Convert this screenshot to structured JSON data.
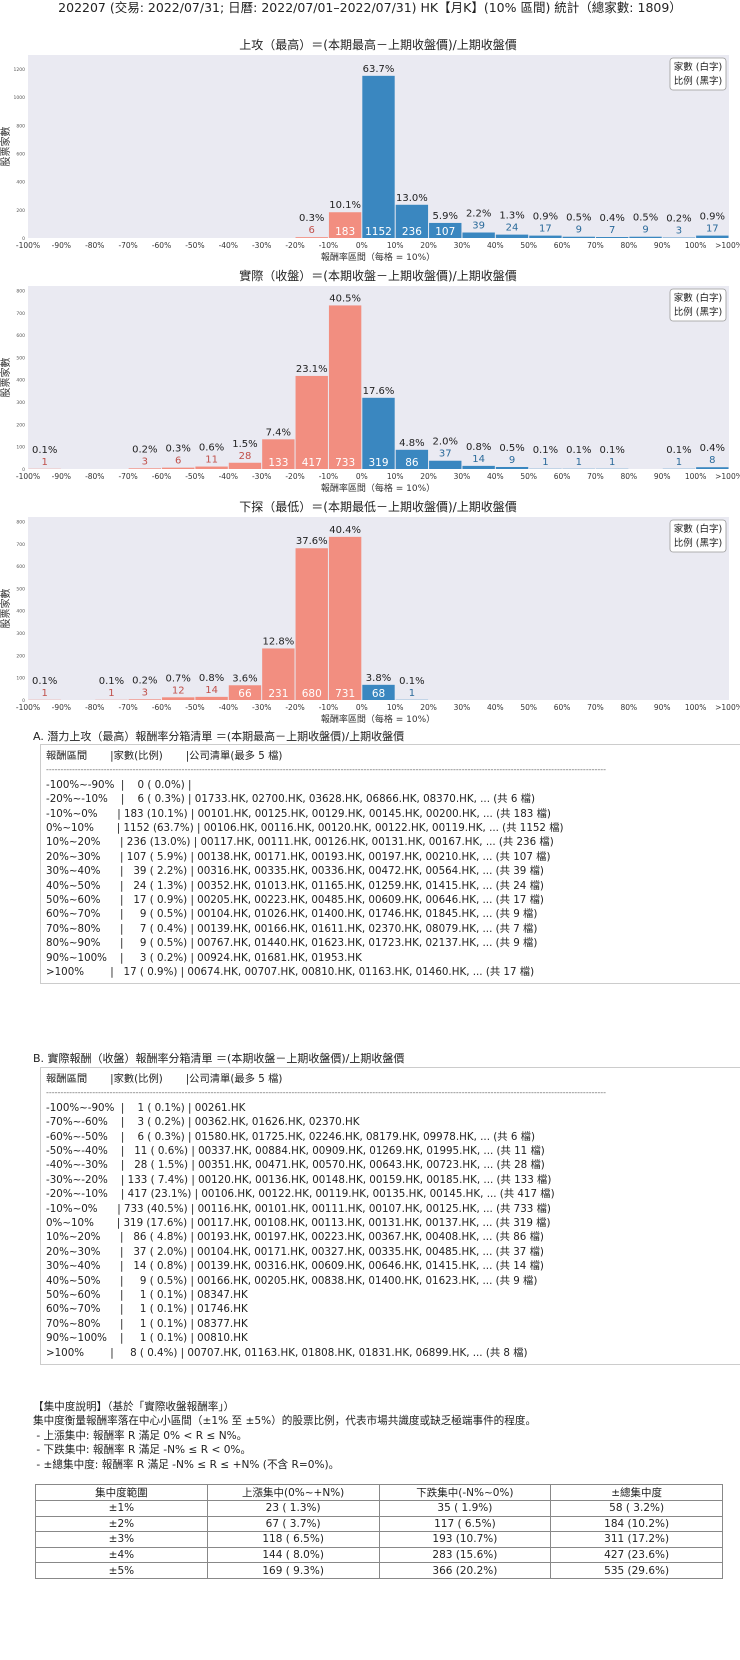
{
  "title": "202207 (交易: 2022/07/31; 日曆: 2022/07/01–2022/07/31) HK【月K】(10% 區間) 統計（總家數: 1809）",
  "colors": {
    "negative": "#f28e80",
    "positive": "#3a87c0",
    "plot_bg": "#eaeaf2"
  },
  "chart_data": [
    {
      "type": "bar",
      "title": "上攻（最高）＝(本期最高－上期收盤價)/上期收盤價",
      "xlabel": "報酬率區間（每格 = 10%）",
      "ylabel": "股票家數",
      "legend": [
        "家數 (白字)",
        "比例 (黑字)"
      ],
      "legend_position": "top-right",
      "ylim": [
        0,
        1300
      ],
      "yticks": [
        0,
        200,
        400,
        600,
        800,
        1000,
        1200
      ],
      "x_tick_labels": [
        "-100%",
        "-90%",
        "-80%",
        "-70%",
        "-60%",
        "-50%",
        "-40%",
        "-30%",
        "-20%",
        "-10%",
        "0%",
        "10%",
        "20%",
        "30%",
        "40%",
        "50%",
        "60%",
        "70%",
        "80%",
        "90%",
        "100%",
        ">100%"
      ],
      "values": [
        0,
        0,
        0,
        0,
        0,
        0,
        0,
        0,
        6,
        183,
        1152,
        236,
        107,
        39,
        24,
        17,
        9,
        7,
        9,
        3,
        17
      ],
      "pct": [
        "",
        "",
        "",
        "",
        "",
        "",
        "",
        "",
        "0.3%",
        "10.1%",
        "63.7%",
        "13.0%",
        "5.9%",
        "2.2%",
        "1.3%",
        "0.9%",
        "0.5%",
        "0.4%",
        "0.5%",
        "0.2%",
        "0.9%"
      ]
    },
    {
      "type": "bar",
      "title": "實際（收盤）＝(本期收盤－上期收盤價)/上期收盤價",
      "xlabel": "報酬率區間（每格 = 10%）",
      "ylabel": "股票家數",
      "legend": [
        "家數 (白字)",
        "比例 (黑字)"
      ],
      "legend_position": "top-right",
      "ylim": [
        0,
        820
      ],
      "yticks": [
        0,
        100,
        200,
        300,
        400,
        500,
        600,
        700,
        800
      ],
      "x_tick_labels": [
        "-100%",
        "-90%",
        "-80%",
        "-70%",
        "-60%",
        "-50%",
        "-40%",
        "-30%",
        "-20%",
        "-10%",
        "0%",
        "10%",
        "20%",
        "30%",
        "40%",
        "50%",
        "60%",
        "70%",
        "80%",
        "90%",
        "100%",
        ">100%"
      ],
      "values": [
        1,
        0,
        0,
        3,
        6,
        11,
        28,
        133,
        417,
        733,
        319,
        86,
        37,
        14,
        9,
        1,
        1,
        1,
        0,
        1,
        8
      ],
      "pct": [
        "0.1%",
        "",
        "",
        "0.2%",
        "0.3%",
        "0.6%",
        "1.5%",
        "7.4%",
        "23.1%",
        "40.5%",
        "17.6%",
        "4.8%",
        "2.0%",
        "0.8%",
        "0.5%",
        "0.1%",
        "0.1%",
        "0.1%",
        "",
        "0.1%",
        "0.4%"
      ]
    },
    {
      "type": "bar",
      "title": "下探（最低）＝(本期最低－上期收盤價)/上期收盤價",
      "xlabel": "報酬率區間（每格 = 10%）",
      "ylabel": "股票家數",
      "legend": [
        "家數 (白字)",
        "比例 (黑字)"
      ],
      "legend_position": "top-right",
      "ylim": [
        0,
        820
      ],
      "yticks": [
        0,
        100,
        200,
        300,
        400,
        500,
        600,
        700,
        800
      ],
      "x_tick_labels": [
        "-100%",
        "-90%",
        "-80%",
        "-70%",
        "-60%",
        "-50%",
        "-40%",
        "-30%",
        "-20%",
        "-10%",
        "0%",
        "10%",
        "20%",
        "30%",
        "40%",
        "50%",
        "60%",
        "70%",
        "80%",
        "90%",
        "100%",
        ">100%"
      ],
      "values": [
        1,
        0,
        1,
        3,
        12,
        14,
        66,
        231,
        680,
        731,
        68,
        1,
        0,
        0,
        0,
        0,
        0,
        0,
        0,
        0,
        0
      ],
      "pct": [
        "0.1%",
        "",
        "0.1%",
        "0.2%",
        "0.7%",
        "0.8%",
        "3.6%",
        "12.8%",
        "37.6%",
        "40.4%",
        "3.8%",
        "0.1%",
        "",
        "",
        "",
        "",
        "",
        "",
        "",
        "",
        ""
      ]
    }
  ],
  "list_a": {
    "title": "A. 潛力上攻（最高）報酬率分箱清單 ＝(本期最高－上期收盤價)/上期收盤價",
    "header": "報酬區間       |家數(比例)       |公司清單(最多 5 檔)",
    "rows": [
      "-100%~-90%  |    0 ( 0.0%) |",
      "-20%~-10%    |    6 ( 0.3%) | 01733.HK, 02700.HK, 03628.HK, 06866.HK, 08370.HK, ... (共 6 檔)",
      "-10%~0%      | 183 (10.1%) | 00101.HK, 00125.HK, 00129.HK, 00145.HK, 00200.HK, ... (共 183 檔)",
      "0%~10%       | 1152 (63.7%) | 00106.HK, 00116.HK, 00120.HK, 00122.HK, 00119.HK, ... (共 1152 檔)",
      "10%~20%      | 236 (13.0%) | 00117.HK, 00111.HK, 00126.HK, 00131.HK, 00167.HK, ... (共 236 檔)",
      "20%~30%      | 107 ( 5.9%) | 00138.HK, 00171.HK, 00193.HK, 00197.HK, 00210.HK, ... (共 107 檔)",
      "30%~40%      |   39 ( 2.2%) | 00316.HK, 00335.HK, 00336.HK, 00472.HK, 00564.HK, ... (共 39 檔)",
      "40%~50%      |   24 ( 1.3%) | 00352.HK, 01013.HK, 01165.HK, 01259.HK, 01415.HK, ... (共 24 檔)",
      "50%~60%      |   17 ( 0.9%) | 00205.HK, 00223.HK, 00485.HK, 00609.HK, 00646.HK, ... (共 17 檔)",
      "60%~70%      |     9 ( 0.5%) | 00104.HK, 01026.HK, 01400.HK, 01746.HK, 01845.HK, ... (共 9 檔)",
      "70%~80%      |     7 ( 0.4%) | 00139.HK, 00166.HK, 01611.HK, 02370.HK, 08079.HK, ... (共 7 檔)",
      "80%~90%      |     9 ( 0.5%) | 00767.HK, 01440.HK, 01623.HK, 01723.HK, 02137.HK, ... (共 9 檔)",
      "90%~100%    |     3 ( 0.2%) | 00924.HK, 01681.HK, 01953.HK",
      ">100%        |   17 ( 0.9%) | 00674.HK, 00707.HK, 00810.HK, 01163.HK, 01460.HK, ... (共 17 檔)"
    ]
  },
  "list_b": {
    "title": "B. 實際報酬（收盤）報酬率分箱清單 ＝(本期收盤－上期收盤價)/上期收盤價",
    "header": "報酬區間       |家數(比例)       |公司清單(最多 5 檔)",
    "rows": [
      "-100%~-90%  |    1 ( 0.1%) | 00261.HK",
      "-70%~-60%    |    3 ( 0.2%) | 00362.HK, 01626.HK, 02370.HK",
      "-60%~-50%    |    6 ( 0.3%) | 01580.HK, 01725.HK, 02246.HK, 08179.HK, 09978.HK, ... (共 6 檔)",
      "-50%~-40%    |   11 ( 0.6%) | 00337.HK, 00884.HK, 00909.HK, 01269.HK, 01995.HK, ... (共 11 檔)",
      "-40%~-30%    |   28 ( 1.5%) | 00351.HK, 00471.HK, 00570.HK, 00643.HK, 00723.HK, ... (共 28 檔)",
      "-30%~-20%    | 133 ( 7.4%) | 00120.HK, 00136.HK, 00148.HK, 00159.HK, 00185.HK, ... (共 133 檔)",
      "-20%~-10%    | 417 (23.1%) | 00106.HK, 00122.HK, 00119.HK, 00135.HK, 00145.HK, ... (共 417 檔)",
      "-10%~0%      | 733 (40.5%) | 00116.HK, 00101.HK, 00111.HK, 00107.HK, 00125.HK, ... (共 733 檔)",
      "0%~10%       | 319 (17.6%) | 00117.HK, 00108.HK, 00113.HK, 00131.HK, 00137.HK, ... (共 319 檔)",
      "10%~20%      |   86 ( 4.8%) | 00193.HK, 00197.HK, 00223.HK, 00367.HK, 00408.HK, ... (共 86 檔)",
      "20%~30%      |   37 ( 2.0%) | 00104.HK, 00171.HK, 00327.HK, 00335.HK, 00485.HK, ... (共 37 檔)",
      "30%~40%      |   14 ( 0.8%) | 00139.HK, 00316.HK, 00609.HK, 00646.HK, 01415.HK, ... (共 14 檔)",
      "40%~50%      |     9 ( 0.5%) | 00166.HK, 00205.HK, 00838.HK, 01400.HK, 01623.HK, ... (共 9 檔)",
      "50%~60%      |     1 ( 0.1%) | 08347.HK",
      "60%~70%      |     1 ( 0.1%) | 01746.HK",
      "70%~80%      |     1 ( 0.1%) | 08377.HK",
      "90%~100%    |     1 ( 0.1%) | 00810.HK",
      ">100%        |     8 ( 0.4%) | 00707.HK, 01163.HK, 01808.HK, 01831.HK, 06899.HK, ... (共 8 檔)"
    ]
  },
  "concentration": {
    "lines": [
      "【集中度說明】（基於「實際收盤報酬率」）",
      "集中度衡量報酬率落在中心小區間（±1% 至 ±5%）的股票比例，代表市場共識度或缺乏極端事件的程度。",
      " - 上漲集中: 報酬率 R 滿足 0% < R ≤ N%。",
      " - 下跌集中: 報酬率 R 滿足 -N% ≤ R < 0%。",
      " - ±總集中度: 報酬率 R 滿足 -N% ≤ R ≤ +N% (不含 R=0%)。"
    ],
    "headers": [
      "集中度範圍",
      "上漲集中(0%~+N%)",
      "下跌集中(-N%~0%)",
      "±總集中度"
    ],
    "rows": [
      [
        "±1%",
        "23 ( 1.3%)",
        "35 ( 1.9%)",
        "58 ( 3.2%)"
      ],
      [
        "±2%",
        "67 ( 3.7%)",
        "117 ( 6.5%)",
        "184 (10.2%)"
      ],
      [
        "±3%",
        "118 ( 6.5%)",
        "193 (10.7%)",
        "311 (17.2%)"
      ],
      [
        "±4%",
        "144 ( 8.0%)",
        "283 (15.6%)",
        "427 (23.6%)"
      ],
      [
        "±5%",
        "169 ( 9.3%)",
        "366 (20.2%)",
        "535 (29.6%)"
      ]
    ]
  }
}
